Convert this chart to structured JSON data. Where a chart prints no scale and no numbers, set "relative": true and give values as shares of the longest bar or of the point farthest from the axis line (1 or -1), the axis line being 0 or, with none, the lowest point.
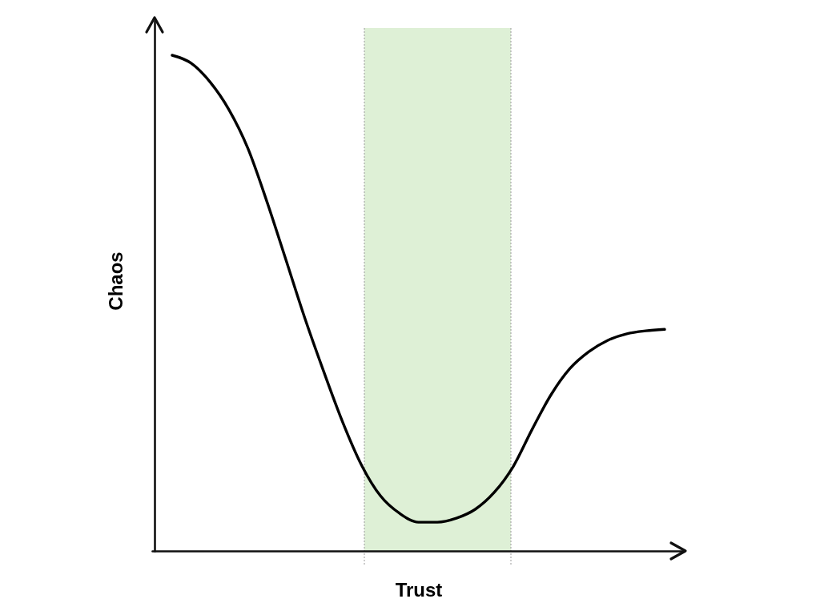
{
  "chart_data": {
    "type": "line",
    "xlabel": "Trust",
    "ylabel": "Chaos",
    "relative": true,
    "categories": [
      null,
      null,
      null,
      null,
      null,
      null,
      null,
      null,
      null,
      null,
      null,
      null,
      null,
      null,
      null,
      null,
      null,
      null,
      null,
      null,
      null,
      null,
      null,
      null,
      null,
      null,
      null
    ],
    "series": [
      {
        "color": "#000000",
        "values": [
          1,
          0.984,
          0.946,
          0.89,
          0.812,
          0.705,
          0.588,
          0.47,
          0.362,
          0.26,
          0.173,
          0.111,
          0.076,
          0.058,
          0.058,
          0.066,
          0.084,
          0.118,
          0.17,
          0.245,
          0.315,
          0.368,
          0.402,
          0.425,
          0.438,
          0.444,
          0.447
        ]
      }
    ]
  }
}
